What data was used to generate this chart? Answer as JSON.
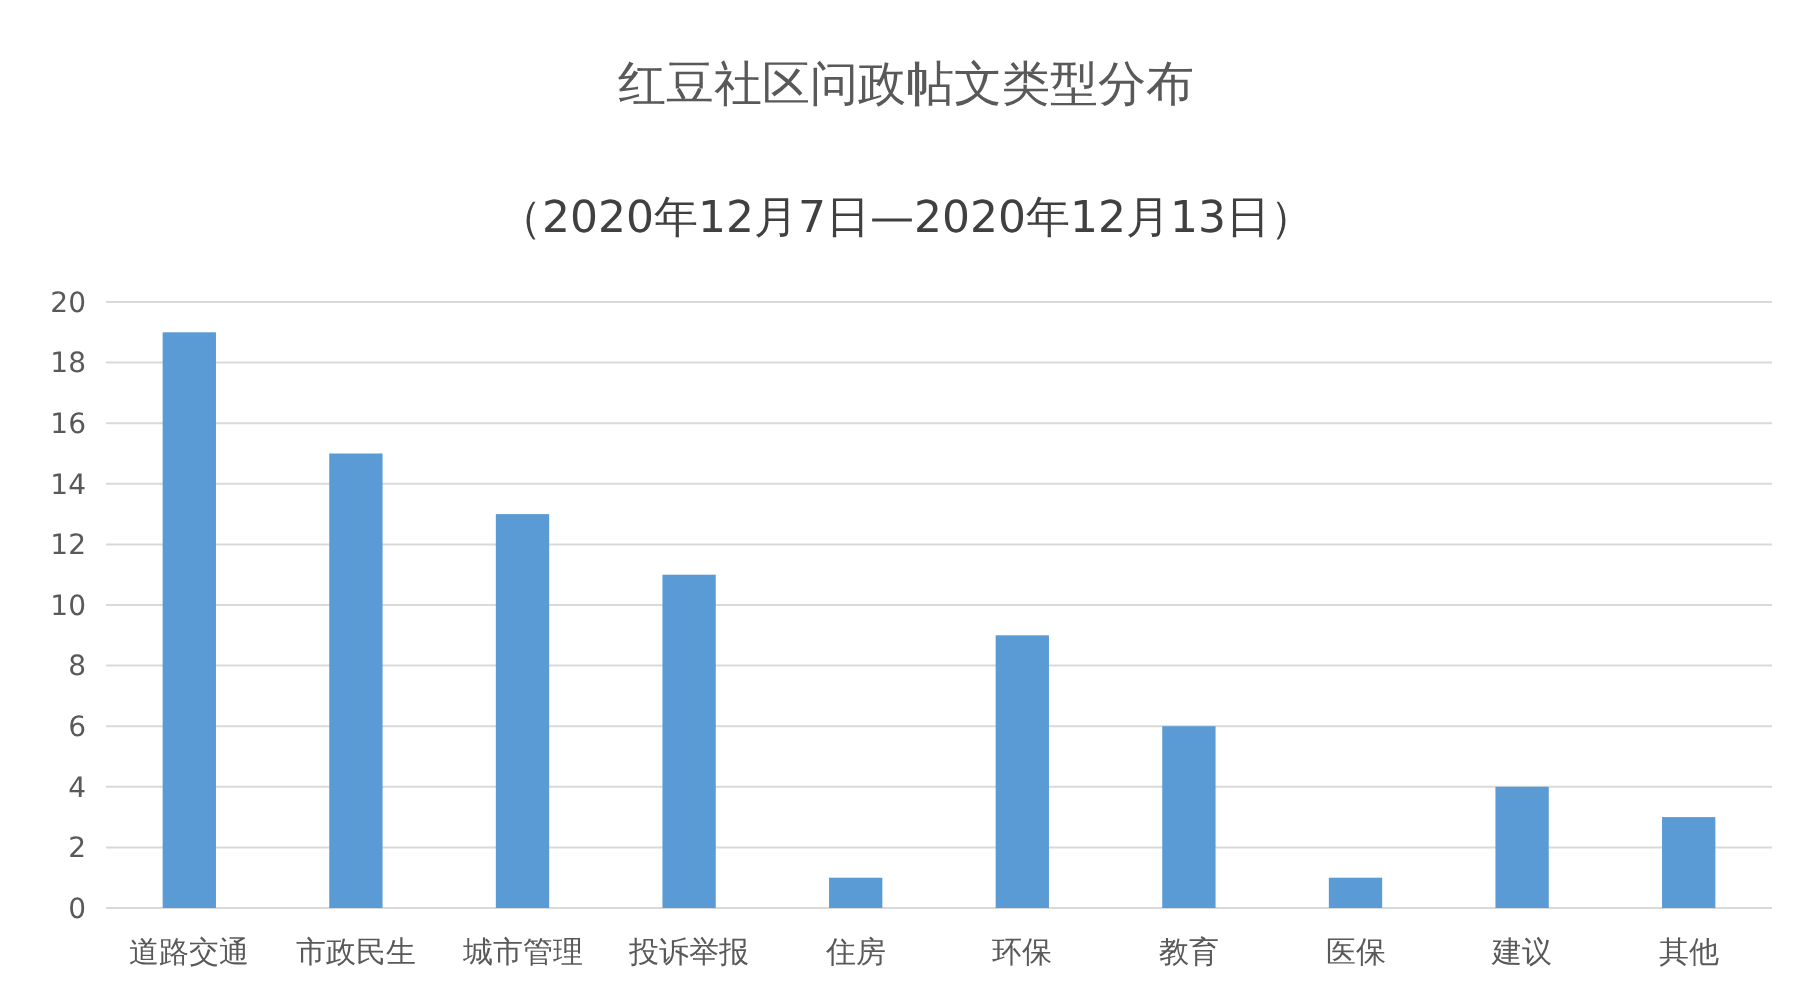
{
  "chart_data": {
    "type": "bar",
    "title": "红豆社区问政帖文类型分布",
    "subtitle": "（2020年12月7日—2020年12月13日）",
    "categories": [
      "道路交通",
      "市政民生",
      "城市管理",
      "投诉举报",
      "住房",
      "环保",
      "教育",
      "医保",
      "建议",
      "其他"
    ],
    "values": [
      19,
      15,
      13,
      11,
      1,
      9,
      6,
      1,
      4,
      3
    ],
    "color": "#5b9bd5",
    "ylim": [
      0,
      20
    ],
    "yticks": [
      0,
      2,
      4,
      6,
      8,
      10,
      12,
      14,
      16,
      18,
      20
    ],
    "grid": "y"
  }
}
